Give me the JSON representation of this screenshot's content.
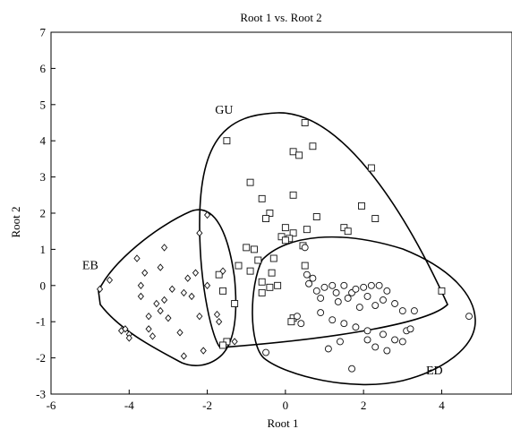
{
  "chart_data": {
    "type": "scatter",
    "title": "Root 1 vs. Root 2",
    "xlabel": "Root 1",
    "ylabel": "Root 2",
    "xlim": [
      -6,
      5.8
    ],
    "ylim": [
      -3,
      7
    ],
    "xticks": [
      -6,
      -4,
      -2,
      0,
      2,
      4
    ],
    "yticks": [
      -3,
      -2,
      -1,
      0,
      1,
      2,
      3,
      4,
      5,
      6,
      7
    ],
    "grid": false,
    "legend": "none",
    "series": [
      {
        "name": "GU",
        "marker": "square",
        "points": [
          [
            -1.5,
            4.0
          ],
          [
            0.5,
            4.5
          ],
          [
            0.7,
            3.85
          ],
          [
            0.2,
            3.7
          ],
          [
            0.35,
            3.6
          ],
          [
            2.2,
            3.25
          ],
          [
            -0.9,
            2.85
          ],
          [
            0.2,
            2.5
          ],
          [
            -0.6,
            2.4
          ],
          [
            1.95,
            2.2
          ],
          [
            -0.4,
            2.0
          ],
          [
            -0.5,
            1.85
          ],
          [
            0.8,
            1.9
          ],
          [
            2.3,
            1.85
          ],
          [
            0.0,
            1.6
          ],
          [
            0.55,
            1.55
          ],
          [
            0.2,
            1.45
          ],
          [
            1.5,
            1.6
          ],
          [
            1.6,
            1.5
          ],
          [
            -0.1,
            1.35
          ],
          [
            0.1,
            1.3
          ],
          [
            0.0,
            1.25
          ],
          [
            0.45,
            1.1
          ],
          [
            -1.0,
            1.05
          ],
          [
            -0.8,
            1.0
          ],
          [
            -0.3,
            0.75
          ],
          [
            -0.7,
            0.7
          ],
          [
            0.5,
            0.55
          ],
          [
            -1.2,
            0.55
          ],
          [
            -0.9,
            0.4
          ],
          [
            -0.35,
            0.35
          ],
          [
            -1.7,
            0.3
          ],
          [
            -0.6,
            0.1
          ],
          [
            -0.4,
            -0.05
          ],
          [
            -0.6,
            -0.2
          ],
          [
            -1.6,
            -0.15
          ],
          [
            -1.3,
            -0.5
          ],
          [
            -0.2,
            0.0
          ],
          [
            0.2,
            -0.9
          ],
          [
            0.15,
            -1.0
          ],
          [
            -1.5,
            -1.55
          ],
          [
            -1.6,
            -1.65
          ],
          [
            4.0,
            -0.15
          ]
        ]
      },
      {
        "name": "EB",
        "marker": "diamond",
        "points": [
          [
            -4.75,
            -0.1
          ],
          [
            -4.5,
            0.15
          ],
          [
            -4.2,
            -1.25
          ],
          [
            -4.1,
            -1.2
          ],
          [
            -4.0,
            -1.35
          ],
          [
            -4.0,
            -1.45
          ],
          [
            -3.8,
            0.75
          ],
          [
            -3.7,
            -0.3
          ],
          [
            -3.6,
            0.35
          ],
          [
            -3.5,
            -0.85
          ],
          [
            -3.5,
            -1.2
          ],
          [
            -3.4,
            -1.4
          ],
          [
            -3.3,
            -0.5
          ],
          [
            -3.2,
            -0.7
          ],
          [
            -3.1,
            1.05
          ],
          [
            -3.2,
            0.5
          ],
          [
            -3.1,
            -0.4
          ],
          [
            -3.0,
            -0.9
          ],
          [
            -2.9,
            -0.1
          ],
          [
            -2.7,
            -1.3
          ],
          [
            -2.6,
            -0.2
          ],
          [
            -2.5,
            0.2
          ],
          [
            -2.4,
            -0.3
          ],
          [
            -2.3,
            0.35
          ],
          [
            -2.2,
            -0.85
          ],
          [
            -2.1,
            -1.8
          ],
          [
            -2.0,
            0.0
          ],
          [
            -2.2,
            1.45
          ],
          [
            -2.0,
            1.95
          ],
          [
            -2.6,
            -1.95
          ],
          [
            -1.75,
            -0.8
          ],
          [
            -1.7,
            -1.0
          ],
          [
            -1.6,
            0.4
          ],
          [
            -1.3,
            -1.55
          ],
          [
            -3.7,
            0.0
          ]
        ]
      },
      {
        "name": "ED",
        "marker": "circle",
        "points": [
          [
            0.5,
            1.05
          ],
          [
            0.55,
            0.3
          ],
          [
            0.6,
            0.05
          ],
          [
            0.7,
            0.2
          ],
          [
            0.8,
            -0.15
          ],
          [
            0.9,
            -0.35
          ],
          [
            1.0,
            -0.05
          ],
          [
            1.2,
            0.0
          ],
          [
            1.3,
            -0.2
          ],
          [
            1.35,
            -0.45
          ],
          [
            1.5,
            0.0
          ],
          [
            1.6,
            -0.35
          ],
          [
            1.7,
            -0.2
          ],
          [
            1.8,
            -0.1
          ],
          [
            1.9,
            -0.6
          ],
          [
            2.0,
            -0.05
          ],
          [
            2.1,
            -0.3
          ],
          [
            2.2,
            0.0
          ],
          [
            2.3,
            -0.55
          ],
          [
            2.4,
            0.0
          ],
          [
            2.5,
            -0.4
          ],
          [
            2.6,
            -0.15
          ],
          [
            2.8,
            -0.5
          ],
          [
            3.0,
            -0.7
          ],
          [
            0.9,
            -0.75
          ],
          [
            1.2,
            -0.95
          ],
          [
            1.5,
            -1.05
          ],
          [
            1.8,
            -1.15
          ],
          [
            2.1,
            -1.25
          ],
          [
            2.3,
            -1.7
          ],
          [
            2.5,
            -1.35
          ],
          [
            2.8,
            -1.5
          ],
          [
            3.0,
            -1.55
          ],
          [
            3.3,
            -0.7
          ],
          [
            3.1,
            -1.25
          ],
          [
            1.1,
            -1.75
          ],
          [
            1.4,
            -1.55
          ],
          [
            1.7,
            -2.3
          ],
          [
            2.1,
            -1.5
          ],
          [
            2.6,
            -1.8
          ],
          [
            3.2,
            -1.2
          ],
          [
            0.3,
            -0.85
          ],
          [
            0.4,
            -1.05
          ],
          [
            4.7,
            -0.85
          ],
          [
            -0.5,
            -1.85
          ]
        ]
      }
    ],
    "group_labels": [
      {
        "text": "GU",
        "x": -1.8,
        "y": 4.75
      },
      {
        "text": "EB",
        "x": -5.2,
        "y": 0.45
      },
      {
        "text": "ED",
        "x": 3.6,
        "y": -2.45
      }
    ]
  }
}
